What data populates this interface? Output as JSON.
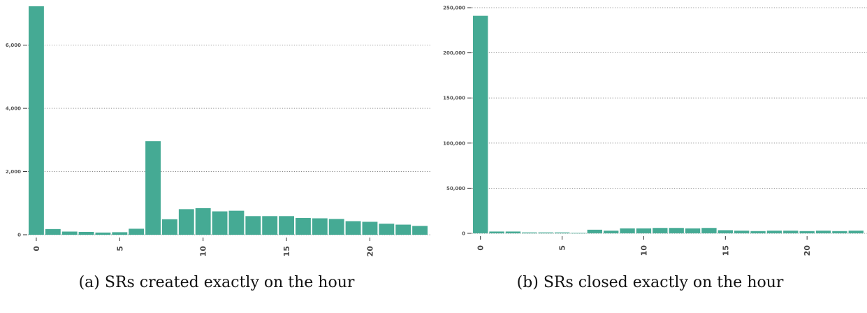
{
  "chart_data": [
    {
      "type": "bar",
      "caption": "(a) SRs created exactly on the hour",
      "x": [
        0,
        1,
        2,
        3,
        4,
        5,
        6,
        7,
        8,
        9,
        10,
        11,
        12,
        13,
        14,
        15,
        16,
        17,
        18,
        19,
        20,
        21,
        22,
        23
      ],
      "values": [
        7230,
        180,
        100,
        90,
        70,
        80,
        190,
        2960,
        490,
        810,
        840,
        740,
        760,
        590,
        590,
        590,
        530,
        520,
        500,
        430,
        410,
        350,
        320,
        280
      ],
      "xticks": [
        0,
        5,
        10,
        15,
        20
      ],
      "xtick_labels": [
        "0",
        "5",
        "10",
        "15",
        "20"
      ],
      "yticks": [
        0,
        2000,
        4000,
        6000
      ],
      "ytick_labels": [
        "0",
        "2,000",
        "4,000",
        "6,000"
      ],
      "ylim": [
        0,
        7230
      ],
      "xlim": [
        -0.5,
        23.5
      ],
      "grid": "horizontal-dotted",
      "color": "#45aa94"
    },
    {
      "type": "bar",
      "caption": "(b) SRs closed exactly on the hour",
      "x": [
        0,
        1,
        2,
        3,
        4,
        5,
        6,
        7,
        8,
        9,
        10,
        11,
        12,
        13,
        14,
        15,
        16,
        17,
        18,
        19,
        20,
        21,
        22,
        23
      ],
      "values": [
        241000,
        2000,
        2000,
        1000,
        1000,
        1000,
        500,
        4000,
        3000,
        5500,
        5500,
        6000,
        6000,
        5500,
        6000,
        3500,
        3000,
        2500,
        3000,
        3000,
        2500,
        3000,
        2500,
        3000
      ],
      "xticks": [
        0,
        5,
        10,
        15,
        20
      ],
      "xtick_labels": [
        "0",
        "5",
        "10",
        "15",
        "20"
      ],
      "yticks": [
        0,
        50000,
        100000,
        150000,
        200000,
        250000
      ],
      "ytick_labels": [
        "0",
        "50,000",
        "100,000",
        "150,000",
        "200,000",
        "250,000"
      ],
      "ylim": [
        0,
        250000
      ],
      "xlim": [
        -0.5,
        23.5
      ],
      "grid": "horizontal-dotted",
      "color": "#45aa94"
    }
  ]
}
